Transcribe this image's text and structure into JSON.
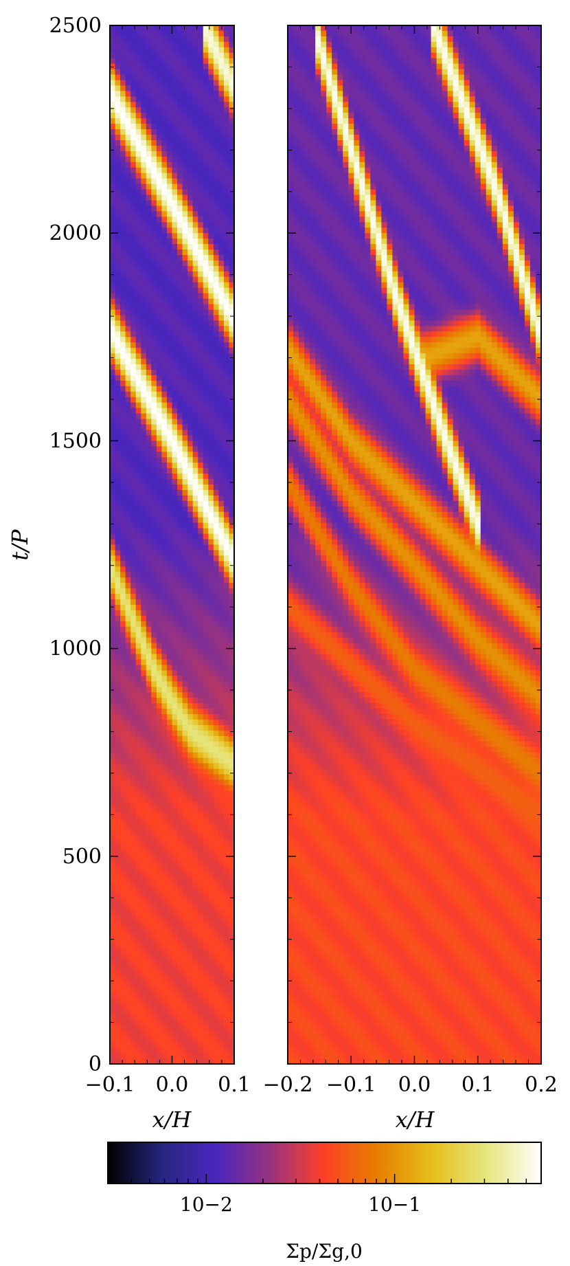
{
  "chart_data": [
    {
      "type": "heatmap",
      "panel": "left",
      "xlabel": "x/H",
      "ylabel": "t/P",
      "xlim": [
        -0.1,
        0.1
      ],
      "ylim": [
        0,
        2500
      ],
      "x_ticks": [
        -0.1,
        0.0,
        0.1
      ],
      "x_tick_labels": [
        "−0.1",
        "0.0",
        "0.1"
      ],
      "y_ticks": [
        0,
        500,
        1000,
        1500,
        2000,
        2500
      ],
      "y_tick_labels": [
        "0",
        "500",
        "1000",
        "1500",
        "2000",
        "2500"
      ],
      "background_low_t_value": 0.04,
      "background_high_t_value": 0.012,
      "filaments": [
        {
          "points": [
            [
              -0.1,
              1200
            ],
            [
              -0.03,
              950
            ],
            [
              0.0,
              870
            ],
            [
              0.03,
              800
            ],
            [
              0.1,
              720
            ]
          ],
          "peak": 0.3
        },
        {
          "points": [
            [
              -0.1,
              1770
            ],
            [
              0.0,
              1500
            ],
            [
              0.1,
              1210
            ]
          ],
          "peak": 0.6
        },
        {
          "points": [
            [
              -0.1,
              2340
            ],
            [
              0.0,
              2070
            ],
            [
              0.1,
              1790
            ]
          ],
          "peak": 0.6
        },
        {
          "points": [
            [
              0.05,
              2500
            ],
            [
              0.1,
              2350
            ]
          ],
          "peak": 0.5
        }
      ]
    },
    {
      "type": "heatmap",
      "panel": "right",
      "xlabel": "x/H",
      "xlim": [
        -0.2,
        0.2
      ],
      "ylim": [
        0,
        2500
      ],
      "x_ticks": [
        -0.2,
        -0.1,
        0.0,
        0.1,
        0.2
      ],
      "x_tick_labels": [
        "−0.2",
        "−0.1",
        "0.0",
        "0.1",
        "0.2"
      ],
      "background_low_t_value": 0.045,
      "background_high_t_value": 0.014,
      "filaments": [
        {
          "points": [
            [
              -0.16,
              2500
            ],
            [
              -0.07,
              2050
            ],
            [
              -0.03,
              1850
            ],
            [
              0.0,
              1720
            ],
            [
              0.05,
              1500
            ],
            [
              0.1,
              1300
            ]
          ],
          "peak": 0.55
        },
        {
          "points": [
            [
              0.03,
              2500
            ],
            [
              0.13,
              2100
            ],
            [
              0.2,
              1750
            ]
          ],
          "peak": 0.55
        },
        {
          "points": [
            [
              -0.2,
              1720
            ],
            [
              -0.1,
              1500
            ],
            [
              0.0,
              1350
            ],
            [
              0.1,
              1200
            ],
            [
              0.2,
              1050
            ]
          ],
          "peak": 0.12
        },
        {
          "points": [
            [
              -0.2,
              1600
            ],
            [
              -0.1,
              1370
            ],
            [
              0.0,
              1200
            ],
            [
              0.1,
              1020
            ],
            [
              0.2,
              880
            ]
          ],
          "peak": 0.1
        },
        {
          "points": [
            [
              -0.2,
              1400
            ],
            [
              -0.1,
              1150
            ],
            [
              0.0,
              950
            ],
            [
              0.1,
              820
            ],
            [
              0.2,
              700
            ]
          ],
          "peak": 0.08
        },
        {
          "points": [
            [
              0.0,
              1690
            ],
            [
              0.1,
              1750
            ],
            [
              0.2,
              1600
            ]
          ],
          "peak": 0.12
        },
        {
          "points": [
            [
              -0.2,
              1100
            ],
            [
              0.0,
              820
            ],
            [
              0.2,
              600
            ]
          ],
          "peak": 0.06
        }
      ]
    }
  ],
  "colorbar": {
    "colormap": "CMRmap",
    "scale": "log",
    "vmin": 0.003,
    "vmax": 0.6,
    "tick_values": [
      0.01,
      0.1
    ],
    "tick_labels": [
      "10−2",
      "10−1"
    ],
    "label": "Σp/Σg,0"
  }
}
